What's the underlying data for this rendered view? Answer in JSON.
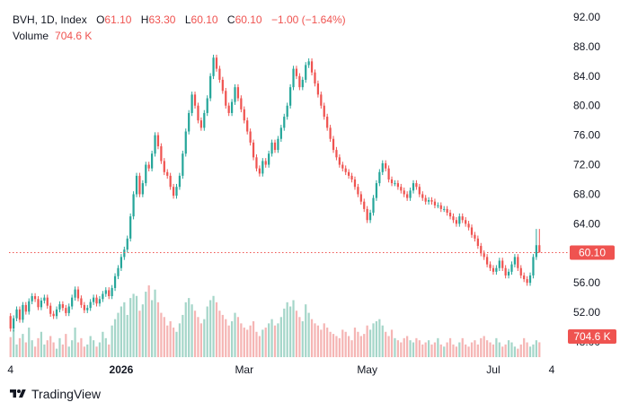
{
  "legend": {
    "symbol": "BVH, 1D, Index",
    "o_label": "O",
    "o_value": "61.10",
    "h_label": "H",
    "h_value": "63.30",
    "l_label": "L",
    "l_value": "60.10",
    "c_label": "C",
    "c_value": "60.10",
    "change": "−1.00 (−1.64%)",
    "volume_label": "Volume",
    "volume_value": "704.6 K"
  },
  "price_tag": "60.10",
  "volume_tag": "704.6 K",
  "branding": "TradingView",
  "colors": {
    "up": "#26a69a",
    "down": "#ef5350",
    "up_volume": "#a5d6c9",
    "down_volume": "#f5b5b4"
  },
  "chart_data": {
    "type": "candlestick",
    "y_ticks": [
      "92.00",
      "88.00",
      "84.00",
      "80.00",
      "76.00",
      "72.00",
      "68.00",
      "64.00",
      "60.00",
      "56.00",
      "52.00",
      "48.00"
    ],
    "ylim": [
      48,
      92
    ],
    "x_ticks": [
      {
        "label": "4",
        "index": 0
      },
      {
        "label": "2026",
        "index": 36,
        "bold": true
      },
      {
        "label": "Mar",
        "index": 76
      },
      {
        "label": "May",
        "index": 116
      },
      {
        "label": "Jul",
        "index": 157
      },
      {
        "label": "4",
        "index": 176
      }
    ],
    "last_close": 60.1,
    "grid": false,
    "series": [
      {
        "name": "Price",
        "close": [
          49.8,
          51.2,
          52.4,
          51.0,
          53.0,
          52.1,
          53.5,
          54.2,
          53.8,
          52.7,
          53.6,
          54.0,
          52.9,
          51.8,
          51.5,
          52.4,
          53.1,
          52.6,
          51.9,
          52.8,
          54.0,
          55.1,
          53.9,
          53.0,
          52.3,
          52.6,
          53.4,
          54.0,
          53.2,
          53.8,
          54.5,
          55.0,
          54.2,
          55.3,
          56.9,
          58.0,
          59.5,
          60.5,
          62.0,
          65.0,
          68.0,
          70.5,
          68.0,
          69.5,
          72.0,
          71.5,
          73.5,
          76.0,
          74.5,
          72.5,
          71.0,
          70.5,
          69.0,
          67.8,
          69.0,
          70.5,
          73.5,
          76.5,
          79.0,
          81.5,
          80.0,
          78.0,
          77.0,
          79.0,
          81.0,
          84.0,
          86.5,
          85.0,
          83.5,
          82.0,
          80.0,
          79.0,
          80.5,
          82.5,
          81.0,
          79.5,
          78.0,
          76.5,
          75.0,
          73.0,
          71.5,
          70.8,
          72.5,
          72.0,
          73.5,
          75.0,
          74.0,
          75.5,
          77.0,
          78.5,
          80.0,
          82.5,
          85.0,
          84.0,
          82.5,
          83.5,
          85.5,
          86.0,
          84.5,
          83.0,
          81.5,
          80.0,
          78.5,
          77.0,
          75.5,
          74.0,
          73.0,
          72.0,
          71.5,
          71.0,
          70.5,
          70.0,
          69.0,
          68.0,
          67.0,
          66.0,
          64.5,
          65.5,
          67.5,
          69.5,
          71.0,
          72.2,
          71.5,
          70.0,
          69.5,
          69.5,
          69.0,
          68.5,
          68.0,
          67.5,
          68.5,
          69.5,
          69.0,
          68.0,
          67.5,
          67.0,
          67.2,
          67.0,
          66.5,
          66.5,
          66.0,
          66.0,
          65.5,
          65.0,
          64.5,
          64.0,
          65.0,
          64.5,
          64.0,
          63.5,
          62.5,
          62.0,
          61.0,
          60.0,
          59.5,
          58.5,
          58.0,
          57.5,
          58.0,
          59.0,
          58.0,
          57.0,
          57.5,
          58.5,
          59.5,
          58.0,
          57.0,
          56.5,
          56.0,
          57.0,
          59.5,
          61.1,
          60.1
        ],
        "open": [
          51.5,
          49.8,
          51.2,
          52.4,
          51.0,
          53.0,
          52.1,
          53.5,
          54.2,
          53.8,
          52.7,
          53.6,
          54.0,
          52.9,
          51.8,
          51.5,
          52.4,
          53.1,
          52.6,
          51.9,
          52.8,
          54.0,
          55.1,
          53.9,
          53.0,
          52.3,
          52.6,
          53.4,
          54.0,
          53.2,
          53.8,
          54.5,
          55.0,
          54.2,
          55.3,
          56.9,
          58.0,
          59.5,
          60.5,
          62.0,
          65.0,
          68.0,
          70.5,
          68.0,
          69.5,
          72.0,
          71.5,
          73.5,
          76.0,
          74.5,
          72.5,
          71.0,
          70.5,
          69.0,
          67.8,
          69.0,
          70.5,
          73.5,
          76.5,
          79.0,
          81.5,
          80.0,
          78.0,
          77.0,
          79.0,
          81.0,
          84.0,
          86.5,
          85.0,
          83.5,
          82.0,
          80.0,
          79.0,
          80.5,
          82.5,
          81.0,
          79.5,
          78.0,
          76.5,
          75.0,
          73.0,
          71.5,
          70.8,
          72.5,
          72.0,
          73.5,
          75.0,
          74.0,
          75.5,
          77.0,
          78.5,
          80.0,
          82.5,
          85.0,
          84.0,
          82.5,
          83.5,
          85.5,
          86.0,
          84.5,
          83.0,
          81.5,
          80.0,
          78.5,
          77.0,
          75.5,
          74.0,
          73.0,
          72.0,
          71.5,
          71.0,
          70.5,
          70.0,
          69.0,
          68.0,
          67.0,
          66.0,
          64.5,
          65.5,
          67.5,
          69.5,
          71.0,
          72.2,
          71.5,
          70.0,
          69.5,
          69.5,
          69.0,
          68.5,
          68.0,
          67.5,
          68.5,
          69.5,
          69.0,
          68.0,
          67.5,
          67.0,
          67.2,
          67.0,
          66.5,
          66.5,
          66.0,
          66.0,
          65.5,
          65.0,
          64.5,
          64.0,
          65.0,
          64.5,
          64.0,
          63.5,
          62.5,
          62.0,
          61.0,
          60.0,
          59.5,
          58.5,
          58.0,
          57.5,
          58.0,
          59.0,
          58.0,
          57.0,
          57.5,
          58.5,
          59.5,
          58.0,
          57.0,
          56.5,
          56.0,
          57.0,
          59.5,
          61.1
        ],
        "high": [
          51.9,
          51.6,
          52.8,
          52.8,
          53.4,
          53.4,
          53.9,
          54.6,
          54.6,
          54.2,
          54.0,
          54.4,
          54.4,
          53.3,
          52.2,
          52.8,
          53.5,
          53.5,
          53.0,
          53.2,
          54.4,
          55.5,
          55.5,
          54.3,
          53.4,
          53.0,
          53.8,
          54.4,
          54.4,
          54.2,
          54.9,
          55.4,
          55.4,
          55.7,
          57.3,
          58.4,
          59.9,
          60.9,
          62.4,
          65.4,
          68.4,
          70.9,
          70.9,
          69.9,
          72.4,
          72.4,
          73.9,
          76.4,
          76.4,
          74.9,
          72.9,
          71.4,
          70.9,
          69.4,
          69.4,
          70.9,
          73.9,
          76.9,
          79.4,
          81.9,
          81.9,
          80.4,
          78.4,
          79.4,
          81.4,
          84.4,
          86.9,
          86.9,
          85.4,
          83.9,
          82.4,
          80.4,
          80.9,
          82.9,
          82.9,
          81.4,
          79.9,
          78.4,
          76.9,
          75.4,
          73.4,
          71.9,
          72.9,
          72.9,
          73.9,
          75.4,
          75.4,
          75.9,
          77.4,
          78.9,
          80.4,
          82.9,
          85.4,
          85.4,
          84.4,
          83.9,
          85.9,
          86.4,
          86.4,
          84.9,
          83.4,
          81.9,
          80.4,
          78.9,
          77.4,
          75.9,
          74.4,
          73.4,
          72.4,
          71.9,
          71.4,
          70.9,
          70.4,
          69.4,
          68.4,
          67.4,
          66.4,
          65.9,
          67.9,
          69.9,
          71.4,
          72.6,
          72.6,
          71.9,
          70.4,
          69.9,
          69.9,
          69.4,
          68.9,
          68.4,
          68.9,
          69.9,
          69.9,
          69.4,
          68.4,
          67.9,
          67.6,
          67.6,
          67.4,
          66.9,
          66.9,
          66.4,
          66.4,
          65.9,
          65.4,
          64.9,
          65.4,
          65.4,
          64.9,
          64.4,
          63.9,
          62.9,
          62.4,
          61.4,
          60.4,
          59.9,
          58.9,
          58.4,
          58.4,
          59.4,
          59.4,
          58.4,
          57.9,
          58.9,
          59.9,
          59.9,
          58.4,
          57.4,
          56.9,
          57.4,
          59.9,
          63.3,
          63.3
        ],
        "low": [
          49.4,
          49.4,
          50.8,
          50.6,
          50.6,
          51.7,
          51.7,
          53.1,
          53.4,
          52.3,
          52.3,
          53.2,
          52.5,
          51.4,
          51.1,
          51.1,
          52.0,
          52.2,
          51.5,
          51.5,
          52.4,
          53.6,
          53.5,
          52.6,
          51.9,
          51.9,
          52.2,
          53.0,
          52.8,
          52.8,
          53.4,
          54.1,
          53.8,
          53.8,
          54.9,
          56.5,
          57.6,
          59.1,
          60.1,
          61.6,
          64.6,
          67.6,
          67.6,
          67.6,
          69.1,
          71.1,
          71.1,
          73.1,
          74.1,
          72.1,
          70.6,
          70.1,
          68.6,
          67.4,
          67.4,
          68.6,
          70.1,
          73.1,
          76.1,
          78.6,
          79.6,
          77.6,
          76.6,
          76.6,
          78.6,
          80.6,
          83.6,
          84.6,
          83.1,
          81.6,
          79.6,
          78.6,
          78.6,
          80.1,
          80.6,
          79.1,
          77.6,
          76.1,
          74.6,
          72.6,
          71.1,
          70.4,
          70.4,
          71.6,
          71.6,
          73.1,
          73.6,
          73.6,
          75.1,
          76.6,
          78.1,
          79.6,
          82.1,
          83.6,
          82.1,
          82.1,
          83.1,
          85.1,
          84.1,
          82.6,
          81.1,
          79.6,
          78.1,
          76.6,
          75.1,
          73.6,
          72.6,
          71.6,
          71.1,
          70.6,
          70.1,
          69.6,
          68.6,
          67.6,
          66.6,
          65.6,
          64.1,
          64.1,
          65.1,
          67.1,
          69.1,
          70.6,
          71.1,
          69.6,
          69.1,
          69.1,
          68.6,
          68.1,
          67.6,
          67.1,
          67.1,
          68.1,
          68.6,
          67.6,
          67.1,
          66.6,
          66.6,
          66.6,
          66.1,
          66.1,
          65.6,
          65.6,
          65.1,
          64.6,
          64.1,
          63.6,
          63.6,
          64.1,
          63.6,
          63.1,
          62.1,
          61.6,
          60.6,
          59.6,
          59.1,
          58.1,
          57.6,
          57.1,
          57.1,
          57.6,
          57.6,
          56.6,
          56.6,
          57.1,
          58.1,
          57.6,
          56.6,
          56.1,
          55.6,
          55.6,
          56.6,
          59.1,
          60.1
        ]
      },
      {
        "name": "Volume",
        "values": [
          0.95,
          1.3,
          0.6,
          0.9,
          1.1,
          0.7,
          1.4,
          0.8,
          0.5,
          0.9,
          1.2,
          0.6,
          0.8,
          1.0,
          0.7,
          0.4,
          0.9,
          0.6,
          1.1,
          0.5,
          0.8,
          1.4,
          0.7,
          0.9,
          0.5,
          0.6,
          1.0,
          0.8,
          0.5,
          0.7,
          1.2,
          0.9,
          0.6,
          1.5,
          1.8,
          2.1,
          2.4,
          2.6,
          2.0,
          2.8,
          3.0,
          2.9,
          2.2,
          2.5,
          3.1,
          3.4,
          2.7,
          3.2,
          2.6,
          2.1,
          1.9,
          1.5,
          1.7,
          1.4,
          1.2,
          1.6,
          2.0,
          2.6,
          2.8,
          2.5,
          2.2,
          1.9,
          1.6,
          1.8,
          2.4,
          2.7,
          2.9,
          2.6,
          2.2,
          2.0,
          1.8,
          1.5,
          1.7,
          2.1,
          1.9,
          1.6,
          1.4,
          1.3,
          1.5,
          1.7,
          1.2,
          1.0,
          1.3,
          1.4,
          1.6,
          1.8,
          1.5,
          1.6,
          1.9,
          2.3,
          2.6,
          2.4,
          2.7,
          2.2,
          1.9,
          1.7,
          2.5,
          2.1,
          1.8,
          1.6,
          1.5,
          1.3,
          1.6,
          1.4,
          1.2,
          1.1,
          1.0,
          0.9,
          1.3,
          1.2,
          1.0,
          0.8,
          1.4,
          1.2,
          1.0,
          1.1,
          1.5,
          1.3,
          1.6,
          1.7,
          1.8,
          1.5,
          1.2,
          1.0,
          1.3,
          0.9,
          0.8,
          0.7,
          0.9,
          1.0,
          0.8,
          0.7,
          0.9,
          0.8,
          0.6,
          0.7,
          0.8,
          0.6,
          0.7,
          0.9,
          0.6,
          0.5,
          0.7,
          0.9,
          0.6,
          0.5,
          0.7,
          0.9,
          0.6,
          0.5,
          0.7,
          0.8,
          0.6,
          0.9,
          1.0,
          0.8,
          0.7,
          0.6,
          0.9,
          0.7,
          0.5,
          0.6,
          0.8,
          0.7,
          0.5,
          0.4,
          0.6,
          0.9,
          0.7,
          0.5,
          0.6,
          0.8,
          0.7046
        ]
      }
    ]
  }
}
